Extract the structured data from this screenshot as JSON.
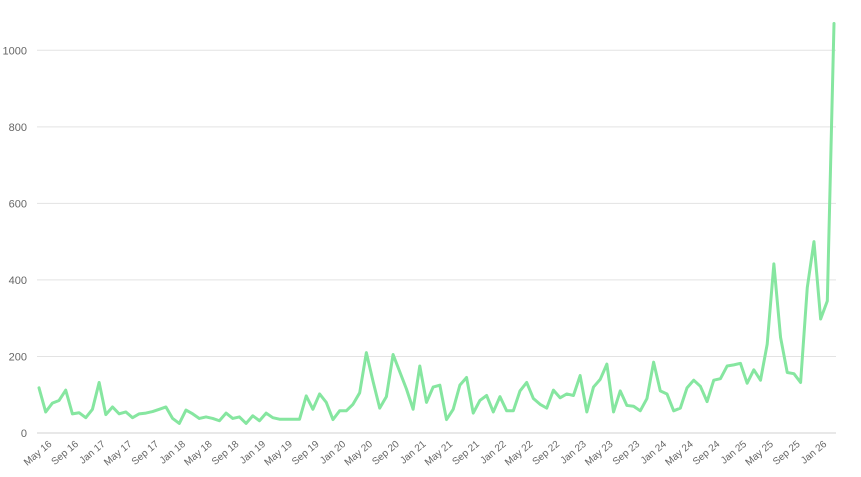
{
  "chart_data": {
    "type": "line",
    "title": "",
    "xlabel": "",
    "ylabel": "",
    "ylim": [
      0,
      1100
    ],
    "yticks": [
      0,
      200,
      400,
      600,
      800,
      1000
    ],
    "grid": true,
    "legend": "none",
    "x_tick_labels": [
      "May 16",
      "Sep 16",
      "Jan 17",
      "May 17",
      "Sep 17",
      "Jan 18",
      "May 18",
      "Sep 18",
      "Jan 19",
      "May 19",
      "Sep 19",
      "Jan 20",
      "May 20",
      "Sep 20",
      "Jan 21",
      "May 21",
      "Sep 21",
      "Jan 22",
      "May 22",
      "Sep 22",
      "Jan 23",
      "May 23",
      "Sep 23",
      "Jan 24",
      "May 24",
      "Sep 24",
      "Jan 25",
      "May 25",
      "Sep 25",
      "Jan 26"
    ],
    "series": [
      {
        "color": "#86e6a0",
        "values": [
          118,
          55,
          78,
          85,
          112,
          50,
          53,
          40,
          62,
          132,
          48,
          68,
          50,
          55,
          40,
          50,
          52,
          56,
          62,
          68,
          38,
          25,
          60,
          50,
          38,
          42,
          38,
          32,
          52,
          38,
          42,
          25,
          45,
          32,
          52,
          40,
          36,
          36,
          36,
          36,
          97,
          62,
          102,
          80,
          35,
          58,
          58,
          75,
          105,
          210,
          135,
          65,
          95,
          205,
          160,
          115,
          62,
          175,
          80,
          120,
          125,
          35,
          62,
          125,
          145,
          52,
          85,
          98,
          55,
          95,
          58,
          58,
          110,
          132,
          90,
          75,
          65,
          112,
          92,
          102,
          98,
          150,
          55,
          120,
          140,
          180,
          55,
          110,
          72,
          70,
          58,
          90,
          185,
          110,
          102,
          58,
          65,
          118,
          138,
          122,
          82,
          138,
          142,
          175,
          178,
          182,
          130,
          165,
          138,
          232,
          442,
          250,
          158,
          155,
          132,
          380,
          500,
          298,
          345,
          1070
        ],
        "start": "2016-03",
        "frequency": "monthly"
      }
    ]
  }
}
